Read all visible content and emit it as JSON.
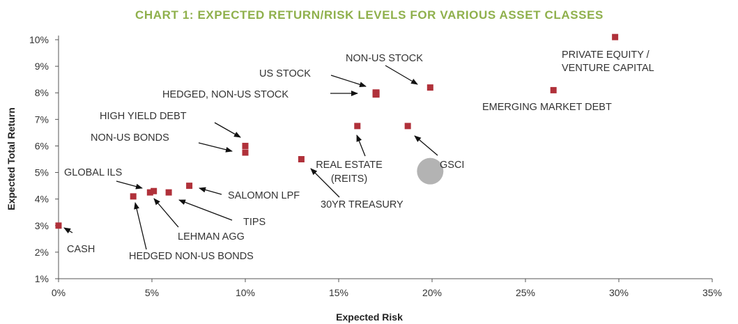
{
  "chart_data": {
    "type": "scatter",
    "title": "CHART 1: EXPECTED RETURN/RISK LEVELS FOR VARIOUS ASSET CLASSES",
    "xlabel": "Expected Risk",
    "ylabel": "Expected Total Return",
    "xlim": [
      0,
      35
    ],
    "ylim": [
      1,
      10
    ],
    "x_ticks": [
      "0%",
      "5%",
      "10%",
      "15%",
      "20%",
      "25%",
      "30%",
      "35%"
    ],
    "y_ticks": [
      "1%",
      "2%",
      "3%",
      "4%",
      "5%",
      "6%",
      "7%",
      "8%",
      "9%",
      "10%"
    ],
    "grid": false,
    "colors": {
      "marker": "#b0313a",
      "highlight": "#b3b3b3",
      "title": "#8fb04c"
    },
    "points": [
      {
        "label": "CASH",
        "x": 0.0,
        "y": 3.0
      },
      {
        "label": "HEDGED NON-US BONDS",
        "x": 4.0,
        "y": 4.1
      },
      {
        "label": "GLOBAL ILS",
        "x": 4.9,
        "y": 4.25
      },
      {
        "label": "LEHMAN AGG",
        "x": 5.1,
        "y": 4.3
      },
      {
        "label": "TIPS",
        "x": 5.9,
        "y": 4.25
      },
      {
        "label": "SALOMON LPF",
        "x": 7.0,
        "y": 4.5
      },
      {
        "label": "HIGH YIELD DEBT",
        "x": 10.0,
        "y": 6.0
      },
      {
        "label": "NON-US BONDS",
        "x": 10.0,
        "y": 5.75
      },
      {
        "label": "30YR TREASURY",
        "x": 13.0,
        "y": 5.5
      },
      {
        "label": "REAL ESTATE (REITS)",
        "x": 16.0,
        "y": 6.75
      },
      {
        "label": "US STOCK",
        "x": 17.0,
        "y": 8.0
      },
      {
        "label": "HEDGED, NON-US STOCK",
        "x": 17.0,
        "y": 7.95
      },
      {
        "label": "GSCI",
        "x": 18.7,
        "y": 6.75
      },
      {
        "label": "NON-US STOCK",
        "x": 19.9,
        "y": 8.2
      },
      {
        "label": "EMERGING MARKET DEBT",
        "x": 26.5,
        "y": 8.1
      },
      {
        "label": "PRIVATE EQUITY / VENTURE CAPITAL",
        "x": 29.8,
        "y": 10.1
      }
    ],
    "highlight": {
      "x": 19.9,
      "y": 5.05
    }
  }
}
